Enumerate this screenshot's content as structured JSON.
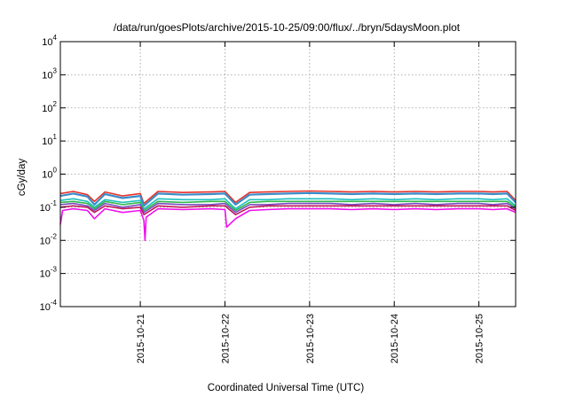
{
  "chart_data": {
    "type": "line",
    "title": "/data/run/goesPlots/archive/2015-10-25/09:00/flux/../bryn/5daysMoon.plot",
    "xlabel": "Coordinated Universal Time (UTC)",
    "ylabel": "cGy/day",
    "yscale": "log",
    "ylim": [
      0.0001,
      10000
    ],
    "xlim": [
      "2015-10-20T01:20",
      "2015-10-25T10:25"
    ],
    "grid": true,
    "legend": "none",
    "y_ticks": [
      {
        "base": "10",
        "exp": "-4",
        "value": 0.0001
      },
      {
        "base": "10",
        "exp": "-3",
        "value": 0.001
      },
      {
        "base": "10",
        "exp": "-2",
        "value": 0.01
      },
      {
        "base": "10",
        "exp": "-1",
        "value": 0.1
      },
      {
        "base": "10",
        "exp": "0",
        "value": 1
      },
      {
        "base": "10",
        "exp": "1",
        "value": 10
      },
      {
        "base": "10",
        "exp": "2",
        "value": 100
      },
      {
        "base": "10",
        "exp": "3",
        "value": 1000
      },
      {
        "base": "10",
        "exp": "4",
        "value": 10000
      }
    ],
    "x_ticks": [
      {
        "label": "2015-10-21",
        "value": "2015-10-21T00:00"
      },
      {
        "label": "2015-10-22",
        "value": "2015-10-22T00:00"
      },
      {
        "label": "2015-10-23",
        "value": "2015-10-23T00:00"
      },
      {
        "label": "2015-10-24",
        "value": "2015-10-24T00:00"
      },
      {
        "label": "2015-10-25",
        "value": "2015-10-25T00:00"
      }
    ],
    "series": [
      {
        "color": "#e8332a",
        "x": [
          "2015-10-20T01:20",
          "2015-10-20T05:00",
          "2015-10-20T09:00",
          "2015-10-20T11:00",
          "2015-10-20T14:00",
          "2015-10-20T19:00",
          "2015-10-21T00:00",
          "2015-10-21T01:00",
          "2015-10-21T05:00",
          "2015-10-21T12:00",
          "2015-10-21T20:00",
          "2015-10-22T00:00",
          "2015-10-22T03:00",
          "2015-10-22T07:00",
          "2015-10-22T12:00",
          "2015-10-22T18:00",
          "2015-10-23T00:00",
          "2015-10-23T06:00",
          "2015-10-23T12:00",
          "2015-10-23T18:00",
          "2015-10-24T00:00",
          "2015-10-24T06:00",
          "2015-10-24T12:00",
          "2015-10-24T18:00",
          "2015-10-25T00:00",
          "2015-10-25T04:00",
          "2015-10-25T08:00",
          "2015-10-25T10:25"
        ],
        "y": [
          0.26,
          0.3,
          0.24,
          0.15,
          0.29,
          0.22,
          0.26,
          0.13,
          0.3,
          0.28,
          0.29,
          0.3,
          0.14,
          0.28,
          0.29,
          0.3,
          0.31,
          0.3,
          0.29,
          0.3,
          0.29,
          0.3,
          0.29,
          0.3,
          0.3,
          0.29,
          0.3,
          0.16
        ]
      },
      {
        "color": "#3a8cc9",
        "x": [
          "2015-10-20T01:20",
          "2015-10-20T05:00",
          "2015-10-20T09:00",
          "2015-10-20T11:00",
          "2015-10-20T14:00",
          "2015-10-20T19:00",
          "2015-10-21T00:00",
          "2015-10-21T01:00",
          "2015-10-21T05:00",
          "2015-10-21T12:00",
          "2015-10-21T20:00",
          "2015-10-22T00:00",
          "2015-10-22T03:00",
          "2015-10-22T07:00",
          "2015-10-22T12:00",
          "2015-10-22T18:00",
          "2015-10-23T00:00",
          "2015-10-23T06:00",
          "2015-10-23T12:00",
          "2015-10-23T18:00",
          "2015-10-24T00:00",
          "2015-10-24T06:00",
          "2015-10-24T12:00",
          "2015-10-24T18:00",
          "2015-10-25T00:00",
          "2015-10-25T04:00",
          "2015-10-25T08:00",
          "2015-10-25T10:25"
        ],
        "y": [
          0.22,
          0.26,
          0.21,
          0.12,
          0.25,
          0.19,
          0.22,
          0.11,
          0.26,
          0.24,
          0.25,
          0.26,
          0.12,
          0.24,
          0.25,
          0.26,
          0.27,
          0.26,
          0.25,
          0.26,
          0.25,
          0.26,
          0.25,
          0.26,
          0.26,
          0.25,
          0.26,
          0.14
        ]
      },
      {
        "color": "#20c0c0",
        "x": [
          "2015-10-20T01:20",
          "2015-10-20T05:00",
          "2015-10-20T09:00",
          "2015-10-20T11:00",
          "2015-10-20T14:00",
          "2015-10-20T19:00",
          "2015-10-21T00:00",
          "2015-10-21T01:00",
          "2015-10-21T05:00",
          "2015-10-21T12:00",
          "2015-10-21T20:00",
          "2015-10-22T00:00",
          "2015-10-22T03:00",
          "2015-10-22T07:00",
          "2015-10-22T12:00",
          "2015-10-22T18:00",
          "2015-10-23T00:00",
          "2015-10-23T06:00",
          "2015-10-23T12:00",
          "2015-10-23T18:00",
          "2015-10-24T00:00",
          "2015-10-24T06:00",
          "2015-10-24T12:00",
          "2015-10-24T18:00",
          "2015-10-25T00:00",
          "2015-10-25T04:00",
          "2015-10-25T08:00",
          "2015-10-25T10:25"
        ],
        "y": [
          0.16,
          0.18,
          0.15,
          0.1,
          0.17,
          0.14,
          0.16,
          0.09,
          0.18,
          0.17,
          0.17,
          0.18,
          0.09,
          0.17,
          0.17,
          0.18,
          0.18,
          0.18,
          0.17,
          0.18,
          0.17,
          0.18,
          0.17,
          0.18,
          0.18,
          0.17,
          0.18,
          0.11
        ]
      },
      {
        "color": "#2fb84a",
        "x": [
          "2015-10-20T01:20",
          "2015-10-20T05:00",
          "2015-10-20T09:00",
          "2015-10-20T11:00",
          "2015-10-20T14:00",
          "2015-10-20T19:00",
          "2015-10-21T00:00",
          "2015-10-21T01:00",
          "2015-10-21T05:00",
          "2015-10-21T12:00",
          "2015-10-21T20:00",
          "2015-10-22T00:00",
          "2015-10-22T03:00",
          "2015-10-22T07:00",
          "2015-10-22T12:00",
          "2015-10-22T18:00",
          "2015-10-23T00:00",
          "2015-10-23T06:00",
          "2015-10-23T12:00",
          "2015-10-23T18:00",
          "2015-10-24T00:00",
          "2015-10-24T06:00",
          "2015-10-24T12:00",
          "2015-10-24T18:00",
          "2015-10-25T00:00",
          "2015-10-25T04:00",
          "2015-10-25T08:00",
          "2015-10-25T10:25"
        ],
        "y": [
          0.14,
          0.15,
          0.13,
          0.09,
          0.15,
          0.12,
          0.14,
          0.08,
          0.15,
          0.14,
          0.15,
          0.15,
          0.08,
          0.14,
          0.15,
          0.15,
          0.15,
          0.15,
          0.15,
          0.15,
          0.15,
          0.15,
          0.15,
          0.15,
          0.15,
          0.15,
          0.15,
          0.1
        ]
      },
      {
        "color": "#7a4bc4",
        "x": [
          "2015-10-20T01:20",
          "2015-10-20T05:00",
          "2015-10-20T09:00",
          "2015-10-20T11:00",
          "2015-10-20T14:00",
          "2015-10-20T19:00",
          "2015-10-21T00:00",
          "2015-10-21T01:00",
          "2015-10-21T05:00",
          "2015-10-21T12:00",
          "2015-10-21T20:00",
          "2015-10-22T00:00",
          "2015-10-22T03:00",
          "2015-10-22T07:00",
          "2015-10-22T12:00",
          "2015-10-22T18:00",
          "2015-10-23T00:00",
          "2015-10-23T06:00",
          "2015-10-23T12:00",
          "2015-10-23T18:00",
          "2015-10-24T00:00",
          "2015-10-24T06:00",
          "2015-10-24T12:00",
          "2015-10-24T18:00",
          "2015-10-25T00:00",
          "2015-10-25T04:00",
          "2015-10-25T08:00",
          "2015-10-25T10:25"
        ],
        "y": [
          0.12,
          0.13,
          0.11,
          0.08,
          0.13,
          0.1,
          0.12,
          0.07,
          0.13,
          0.12,
          0.12,
          0.13,
          0.07,
          0.12,
          0.12,
          0.13,
          0.13,
          0.13,
          0.12,
          0.13,
          0.12,
          0.13,
          0.12,
          0.13,
          0.13,
          0.12,
          0.13,
          0.09
        ]
      },
      {
        "color": "#c2185b",
        "x": [
          "2015-10-20T01:20",
          "2015-10-20T05:00",
          "2015-10-20T09:00",
          "2015-10-20T11:00",
          "2015-10-20T14:00",
          "2015-10-20T19:00",
          "2015-10-21T00:00",
          "2015-10-21T01:00",
          "2015-10-21T05:00",
          "2015-10-21T12:00",
          "2015-10-21T20:00",
          "2015-10-22T00:00",
          "2015-10-22T03:00",
          "2015-10-22T07:00",
          "2015-10-22T12:00",
          "2015-10-22T18:00",
          "2015-10-23T00:00",
          "2015-10-23T06:00",
          "2015-10-23T12:00",
          "2015-10-23T18:00",
          "2015-10-24T00:00",
          "2015-10-24T06:00",
          "2015-10-24T12:00",
          "2015-10-24T18:00",
          "2015-10-25T00:00",
          "2015-10-25T04:00",
          "2015-10-25T08:00",
          "2015-10-25T10:25"
        ],
        "y": [
          0.1,
          0.11,
          0.1,
          0.07,
          0.11,
          0.09,
          0.1,
          0.06,
          0.11,
          0.1,
          0.11,
          0.11,
          0.06,
          0.1,
          0.11,
          0.11,
          0.11,
          0.11,
          0.11,
          0.11,
          0.11,
          0.11,
          0.11,
          0.11,
          0.11,
          0.11,
          0.11,
          0.08
        ]
      },
      {
        "color": "#ee10ee",
        "x": [
          "2015-10-20T01:20",
          "2015-10-20T02:00",
          "2015-10-20T05:00",
          "2015-10-20T09:00",
          "2015-10-20T11:00",
          "2015-10-20T14:00",
          "2015-10-20T19:00",
          "2015-10-21T00:00",
          "2015-10-21T01:00",
          "2015-10-21T01:20",
          "2015-10-21T01:40",
          "2015-10-21T05:00",
          "2015-10-21T12:00",
          "2015-10-21T20:00",
          "2015-10-22T00:00",
          "2015-10-22T00:30",
          "2015-10-22T03:00",
          "2015-10-22T07:00",
          "2015-10-22T12:00",
          "2015-10-22T18:00",
          "2015-10-23T00:00",
          "2015-10-23T06:00",
          "2015-10-23T12:00",
          "2015-10-23T18:00",
          "2015-10-24T00:00",
          "2015-10-24T06:00",
          "2015-10-24T12:00",
          "2015-10-24T18:00",
          "2015-10-25T00:00",
          "2015-10-25T04:00",
          "2015-10-25T08:00",
          "2015-10-25T10:25"
        ],
        "y": [
          0.03,
          0.08,
          0.09,
          0.08,
          0.045,
          0.09,
          0.07,
          0.08,
          0.04,
          0.01,
          0.05,
          0.09,
          0.085,
          0.09,
          0.085,
          0.025,
          0.045,
          0.08,
          0.085,
          0.09,
          0.09,
          0.09,
          0.085,
          0.09,
          0.085,
          0.09,
          0.085,
          0.09,
          0.09,
          0.085,
          0.09,
          0.07
        ]
      }
    ]
  }
}
